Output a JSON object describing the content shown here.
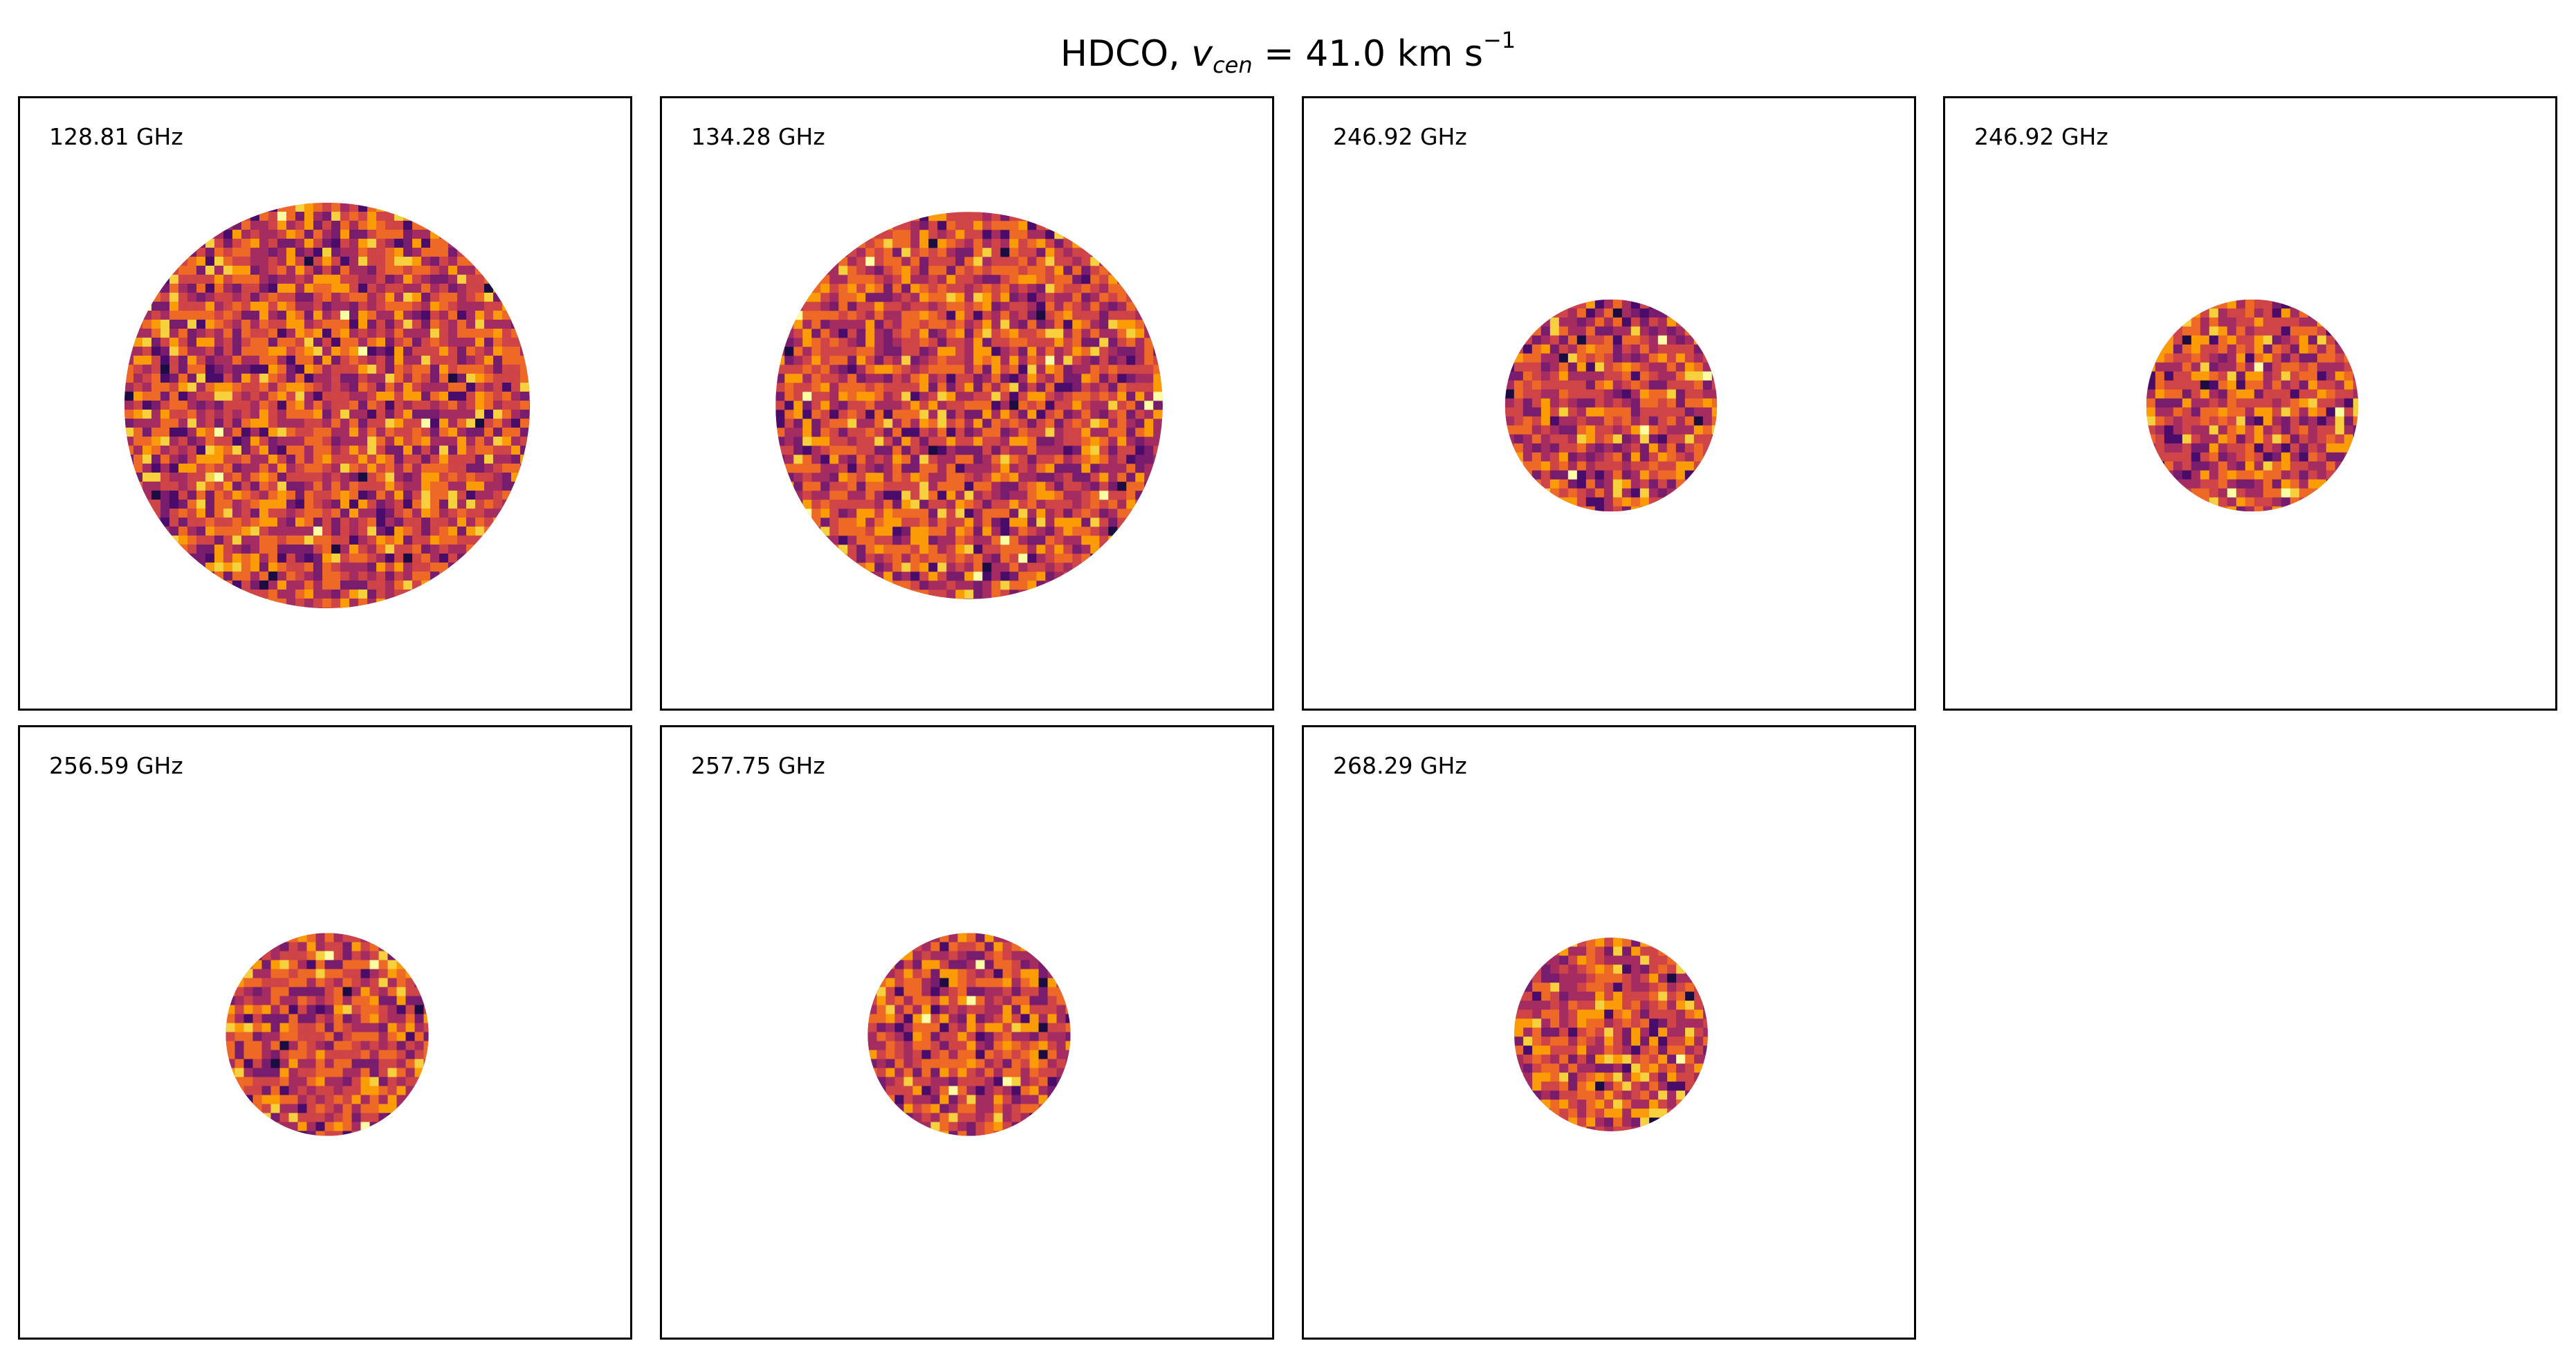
{
  "figure": {
    "title_main": "HDCO, ",
    "title_var": "v",
    "title_sub": "cen",
    "title_eq": " =  41.0 km s",
    "title_sup": "−1"
  },
  "panels": [
    {
      "label": "128.81 GHz",
      "map_radius_fraction": 0.66
    },
    {
      "label": "134.28 GHz",
      "map_radius_fraction": 0.63
    },
    {
      "label": "246.92 GHz",
      "map_radius_fraction": 0.345
    },
    {
      "label": "246.92 GHz",
      "map_radius_fraction": 0.345
    },
    {
      "label": "256.59 GHz",
      "map_radius_fraction": 0.33
    },
    {
      "label": "257.75 GHz",
      "map_radius_fraction": 0.33
    },
    {
      "label": "268.29 GHz",
      "map_radius_fraction": 0.315
    }
  ],
  "colormap": {
    "name": "inferno",
    "stops": [
      "#1b0c41",
      "#4a0c6b",
      "#781c6d",
      "#a52c60",
      "#cf4446",
      "#ed6925",
      "#fb9b06",
      "#f7d13d",
      "#fcffa4"
    ]
  }
}
